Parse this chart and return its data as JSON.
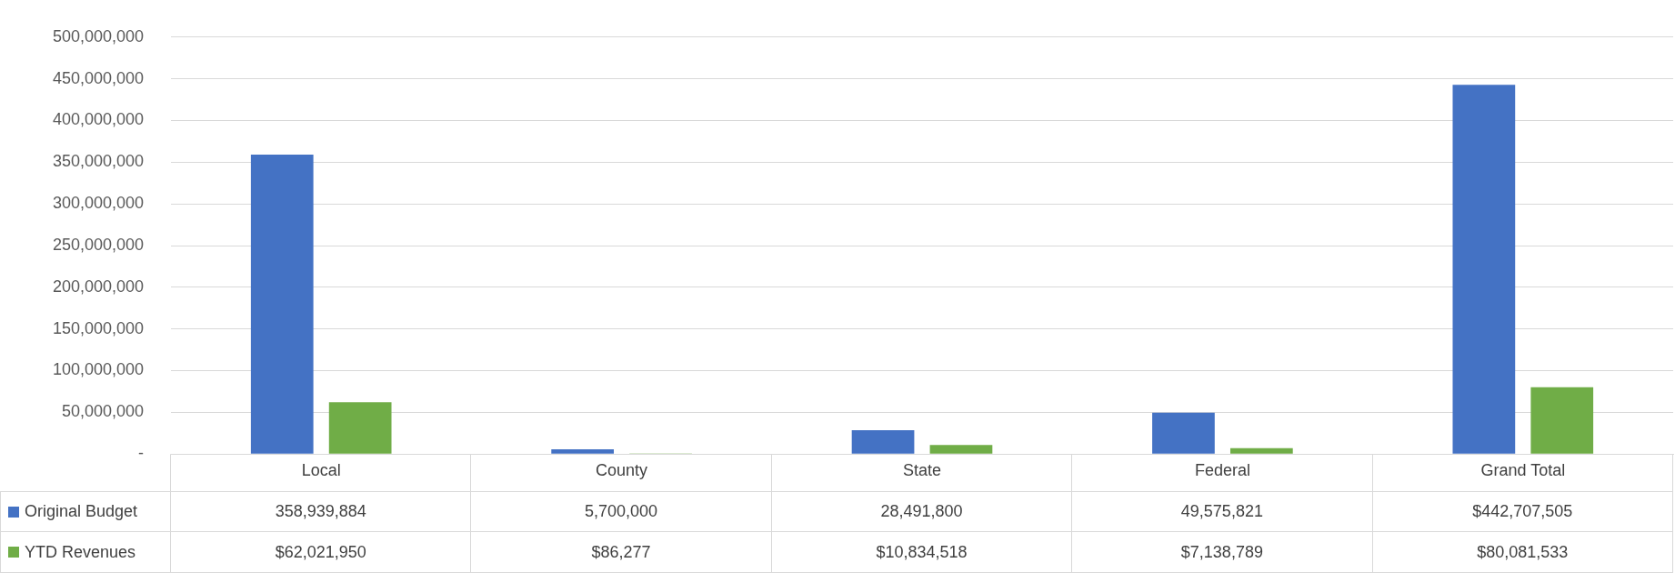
{
  "chart_data": {
    "type": "bar",
    "categories": [
      "Local",
      "County",
      "State",
      "Federal",
      "Grand Total"
    ],
    "series": [
      {
        "name": "Original Budget",
        "color": "#4472c4",
        "values": [
          358939884,
          5700000,
          28491800,
          49575821,
          442707505
        ],
        "value_labels": [
          "358,939,884",
          "5,700,000",
          "28,491,800",
          "49,575,821",
          "$442,707,505"
        ]
      },
      {
        "name": "YTD Revenues",
        "color": "#70ad47",
        "values": [
          62021950,
          86277,
          10834518,
          7138789,
          80081533
        ],
        "value_labels": [
          "$62,021,950",
          "$86,277",
          "$10,834,518",
          "$7,138,789",
          "$80,081,533"
        ]
      }
    ],
    "ylim": [
      0,
      500000000
    ],
    "yticks": [
      {
        "value": 0,
        "label": "-"
      },
      {
        "value": 50000000,
        "label": "50,000,000"
      },
      {
        "value": 100000000,
        "label": "100,000,000"
      },
      {
        "value": 150000000,
        "label": "150,000,000"
      },
      {
        "value": 200000000,
        "label": "200,000,000"
      },
      {
        "value": 250000000,
        "label": "250,000,000"
      },
      {
        "value": 300000000,
        "label": "300,000,000"
      },
      {
        "value": 350000000,
        "label": "350,000,000"
      },
      {
        "value": 400000000,
        "label": "400,000,000"
      },
      {
        "value": 450000000,
        "label": "450,000,000"
      },
      {
        "value": 500000000,
        "label": "500,000,000"
      }
    ],
    "grid": "y",
    "legend": "bottom"
  }
}
